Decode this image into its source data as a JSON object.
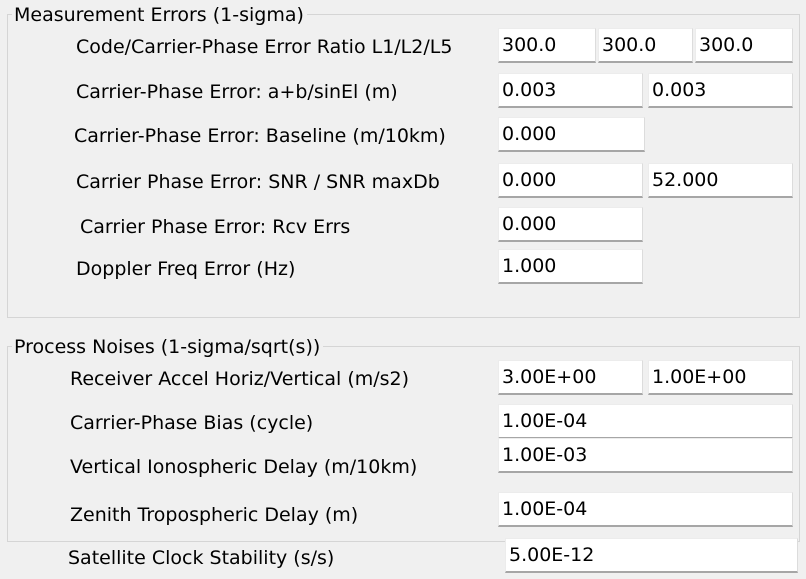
{
  "measurement_errors": {
    "title": "Measurement Errors (1-sigma)",
    "code_carrier_ratio": {
      "label": "Code/Carrier-Phase Error Ratio L1/L2/L5",
      "values": [
        "300.0",
        "300.0",
        "300.0"
      ]
    },
    "carrier_phase_ab": {
      "label": "Carrier-Phase Error: a+b/sinEl (m)",
      "values": [
        "0.003",
        "0.003"
      ]
    },
    "carrier_phase_baseline": {
      "label": "Carrier-Phase Error: Baseline (m/10km)",
      "values": [
        "0.000"
      ]
    },
    "carrier_phase_snr": {
      "label": "Carrier Phase Error: SNR / SNR maxDb",
      "values": [
        "0.000",
        "52.000"
      ]
    },
    "carrier_phase_rcv": {
      "label": "Carrier Phase Error: Rcv Errs",
      "values": [
        "0.000"
      ]
    },
    "doppler": {
      "label": "Doppler Freq Error (Hz)",
      "values": [
        "1.000"
      ]
    }
  },
  "process_noises": {
    "title": "Process Noises (1-sigma/sqrt(s))",
    "receiver_accel": {
      "label": "Receiver Accel Horiz/Vertical (m/s2)",
      "values": [
        "3.00E+00",
        "1.00E+00"
      ]
    },
    "carrier_phase_bias": {
      "label": "Carrier-Phase Bias (cycle)",
      "values": [
        "1.00E-04"
      ]
    },
    "vertical_iono": {
      "label": "Vertical Ionospheric Delay (m/10km)",
      "values": [
        "1.00E-03"
      ]
    },
    "zenith_tropo": {
      "label": "Zenith Tropospheric Delay (m)",
      "values": [
        "1.00E-04"
      ]
    }
  },
  "satellite_clock": {
    "label": "Satellite Clock Stability (s/s)",
    "values": [
      "5.00E-12"
    ]
  }
}
